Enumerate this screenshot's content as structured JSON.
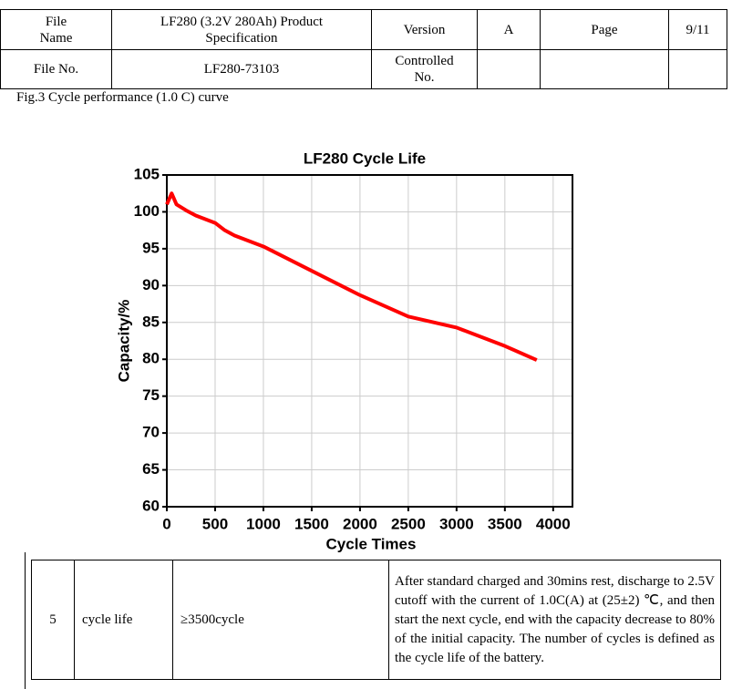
{
  "header": {
    "rows": [
      [
        "File Name",
        "LF280 (3.2V 280Ah) Product Specification",
        "Version",
        "A",
        "Page",
        "9/11"
      ],
      [
        "File No.",
        "LF280-73103",
        "Controlled No.",
        "",
        "",
        ""
      ]
    ]
  },
  "caption": "Fig.3 Cycle performance (1.0 C) curve",
  "chart_data": {
    "type": "line",
    "title": "LF280 Cycle Life",
    "x_label": "Cycle Times",
    "y_label": "Capacity/%",
    "x": [
      0,
      50,
      100,
      200,
      300,
      500,
      600,
      700,
      1000,
      1500,
      2000,
      2500,
      3000,
      3500,
      3830
    ],
    "series": [
      {
        "name": "Capacity",
        "color": "#ff0000",
        "values": [
          101,
          102.5,
          101,
          100.2,
          99.5,
          98.5,
          97.5,
          96.8,
          95.3,
          92,
          88.7,
          85.8,
          84.3,
          81.8,
          79.9
        ]
      }
    ],
    "xlim": [
      0,
      4200
    ],
    "ylim": [
      60,
      105
    ],
    "xticks": [
      0,
      500,
      1000,
      1500,
      2000,
      2500,
      3000,
      3500,
      4000
    ],
    "yticks": [
      60,
      65,
      70,
      75,
      80,
      85,
      90,
      95,
      100,
      105
    ],
    "grid": true
  },
  "table": {
    "rows": [
      [
        "5",
        "cycle life",
        "≥3500cycle",
        "After standard charged and 30mins rest, discharge to 2.5V cutoff with the current of 1.0C(A) at (25±2) ℃, and then start the next cycle, end with the capacity decrease to 80% of the initial capacity. The number of cycles is defined as the cycle life of the battery."
      ]
    ]
  }
}
